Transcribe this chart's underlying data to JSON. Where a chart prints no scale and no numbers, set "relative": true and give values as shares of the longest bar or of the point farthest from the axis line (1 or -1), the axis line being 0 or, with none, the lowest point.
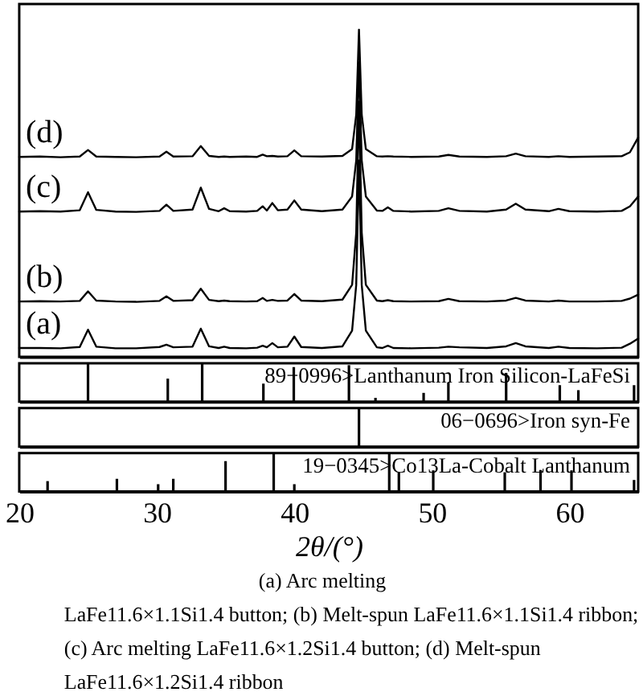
{
  "chart_data": [
    {
      "type": "line",
      "relative": true,
      "xlim": [
        20,
        65
      ],
      "tick_labels": false,
      "x": [
        20.0,
        21.5,
        23.0,
        24.4,
        25.0,
        25.6,
        27.0,
        28.5,
        30.2,
        30.7,
        31.2,
        32.6,
        33.2,
        33.8,
        34.5,
        34.9,
        35.3,
        36.5,
        37.3,
        37.7,
        38.0,
        38.4,
        38.8,
        39.5,
        40.0,
        40.5,
        42.0,
        43.5,
        44.2,
        44.5,
        44.7,
        44.9,
        45.2,
        46.0,
        46.4,
        46.8,
        47.2,
        48.5,
        50.5,
        51.2,
        52.0,
        54.0,
        55.4,
        56.1,
        56.8,
        58.5,
        59.2,
        60.0,
        62.0,
        63.8,
        64.4,
        65.0
      ],
      "series": [
        {
          "name": "(a)",
          "color": "#000000",
          "values": [
            0.027,
            0.027,
            0.026,
            0.03,
            0.083,
            0.031,
            0.026,
            0.026,
            0.03,
            0.037,
            0.029,
            0.031,
            0.086,
            0.032,
            0.027,
            0.031,
            0.027,
            0.026,
            0.028,
            0.034,
            0.029,
            0.042,
            0.029,
            0.031,
            0.062,
            0.03,
            0.027,
            0.032,
            0.08,
            0.22,
            0.6,
            0.22,
            0.08,
            0.029,
            0.027,
            0.034,
            0.027,
            0.026,
            0.028,
            0.031,
            0.029,
            0.027,
            0.032,
            0.042,
            0.032,
            0.027,
            0.031,
            0.027,
            0.026,
            0.028,
            0.04,
            0.056
          ]
        },
        {
          "name": "(b)",
          "color": "#000000",
          "values": [
            0.169,
            0.17,
            0.169,
            0.171,
            0.2,
            0.172,
            0.169,
            0.168,
            0.171,
            0.185,
            0.171,
            0.173,
            0.208,
            0.174,
            0.17,
            0.172,
            0.17,
            0.169,
            0.17,
            0.18,
            0.171,
            0.174,
            0.171,
            0.172,
            0.192,
            0.172,
            0.17,
            0.175,
            0.22,
            0.38,
            0.78,
            0.38,
            0.22,
            0.172,
            0.17,
            0.173,
            0.17,
            0.169,
            0.17,
            0.177,
            0.17,
            0.169,
            0.172,
            0.18,
            0.172,
            0.169,
            0.172,
            0.169,
            0.169,
            0.171,
            0.178,
            0.19
          ]
        },
        {
          "name": "(c)",
          "color": "#000000",
          "values": [
            0.444,
            0.445,
            0.444,
            0.448,
            0.503,
            0.449,
            0.444,
            0.443,
            0.446,
            0.465,
            0.446,
            0.45,
            0.517,
            0.452,
            0.445,
            0.454,
            0.445,
            0.444,
            0.446,
            0.46,
            0.447,
            0.47,
            0.448,
            0.45,
            0.478,
            0.45,
            0.445,
            0.45,
            0.49,
            0.6,
            0.9,
            0.6,
            0.49,
            0.447,
            0.446,
            0.457,
            0.446,
            0.444,
            0.446,
            0.454,
            0.446,
            0.444,
            0.45,
            0.468,
            0.45,
            0.445,
            0.452,
            0.445,
            0.444,
            0.446,
            0.46,
            0.49
          ]
        },
        {
          "name": "(d)",
          "color": "#000000",
          "values": [
            0.611,
            0.612,
            0.61,
            0.612,
            0.632,
            0.612,
            0.611,
            0.61,
            0.612,
            0.627,
            0.612,
            0.613,
            0.644,
            0.614,
            0.611,
            0.612,
            0.611,
            0.612,
            0.611,
            0.618,
            0.613,
            0.614,
            0.612,
            0.613,
            0.631,
            0.613,
            0.612,
            0.614,
            0.635,
            0.74,
            1.0,
            0.74,
            0.635,
            0.613,
            0.612,
            0.613,
            0.612,
            0.611,
            0.612,
            0.617,
            0.612,
            0.611,
            0.613,
            0.621,
            0.613,
            0.611,
            0.613,
            0.611,
            0.612,
            0.613,
            0.625,
            0.67
          ]
        }
      ]
    },
    {
      "type": "bar",
      "relative": true,
      "xlim": [
        20,
        65
      ],
      "tick_labels": false,
      "color": "#000000",
      "x": [
        25.0,
        30.8,
        33.3,
        37.75,
        39.96,
        43.97,
        45.9,
        49.4,
        51.2,
        55.4,
        59.3,
        60.65,
        64.7
      ],
      "values": [
        1.0,
        0.6,
        1.0,
        0.47,
        0.9,
        0.95,
        0.1,
        0.23,
        0.5,
        0.75,
        0.43,
        0.3,
        0.43
      ],
      "annotations": [
        "89−0996>Lanthanum Iron Silicon-LaFeSi"
      ]
    },
    {
      "type": "bar",
      "relative": true,
      "xlim": [
        20,
        65
      ],
      "tick_labels": false,
      "color": "#000000",
      "x": [
        44.7
      ],
      "values": [
        1.0
      ],
      "annotations": [
        "06−0696>Iron syn-Fe"
      ]
    },
    {
      "type": "bar",
      "relative": true,
      "xlim": [
        20,
        65
      ],
      "tick_labels": "x",
      "color": "#000000",
      "xticks": [
        20,
        30,
        40,
        50,
        60
      ],
      "xlabel": "2θ/(°)",
      "x": [
        22.06,
        27.1,
        30.1,
        31.2,
        35.0,
        38.5,
        40.0,
        46.9,
        47.6,
        50.1,
        55.3,
        57.9,
        60.15,
        64.7
      ],
      "values": [
        0.27,
        0.33,
        0.19,
        0.33,
        0.79,
        1.0,
        0.19,
        1.0,
        0.5,
        0.55,
        0.5,
        0.56,
        0.55,
        0.3
      ],
      "annotations": [
        "19−0345>Co13La-Cobalt Lanthanum",
        "(a) Arc melting\nLaFe11.6×1.1Si1.4 button; (b) Melt-spun LaFe11.6×1.1Si1.4 ribbon;\n(c) Arc melting LaFe11.6×1.2Si1.4 button; (d) Melt-spun\nLaFe11.6×1.2Si1.4 ribbon"
      ]
    }
  ]
}
